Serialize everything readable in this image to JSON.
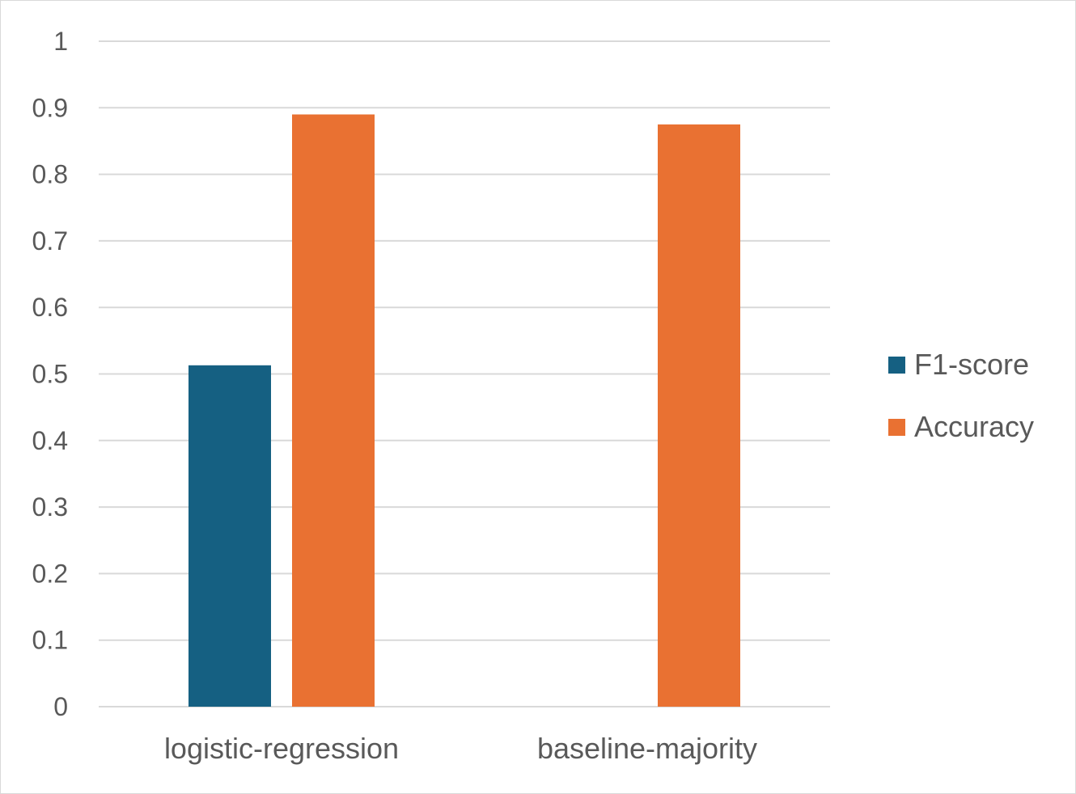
{
  "chart_data": {
    "type": "bar",
    "categories": [
      "logistic-regression",
      "baseline-majority"
    ],
    "series": [
      {
        "name": "F1-score",
        "values": [
          0.513,
          0.0
        ],
        "color": "#156082"
      },
      {
        "name": "Accuracy",
        "values": [
          0.89,
          0.875
        ],
        "color": "#E97132"
      }
    ],
    "ylim": [
      0,
      1
    ],
    "yticks": [
      "0",
      "0.1",
      "0.2",
      "0.3",
      "0.4",
      "0.5",
      "0.6",
      "0.7",
      "0.8",
      "0.9",
      "1"
    ],
    "grid": true,
    "legend_position": "right",
    "colors": {
      "gridline": "#d9d9d9",
      "text": "#595959",
      "border": "#d9d9d9"
    }
  }
}
